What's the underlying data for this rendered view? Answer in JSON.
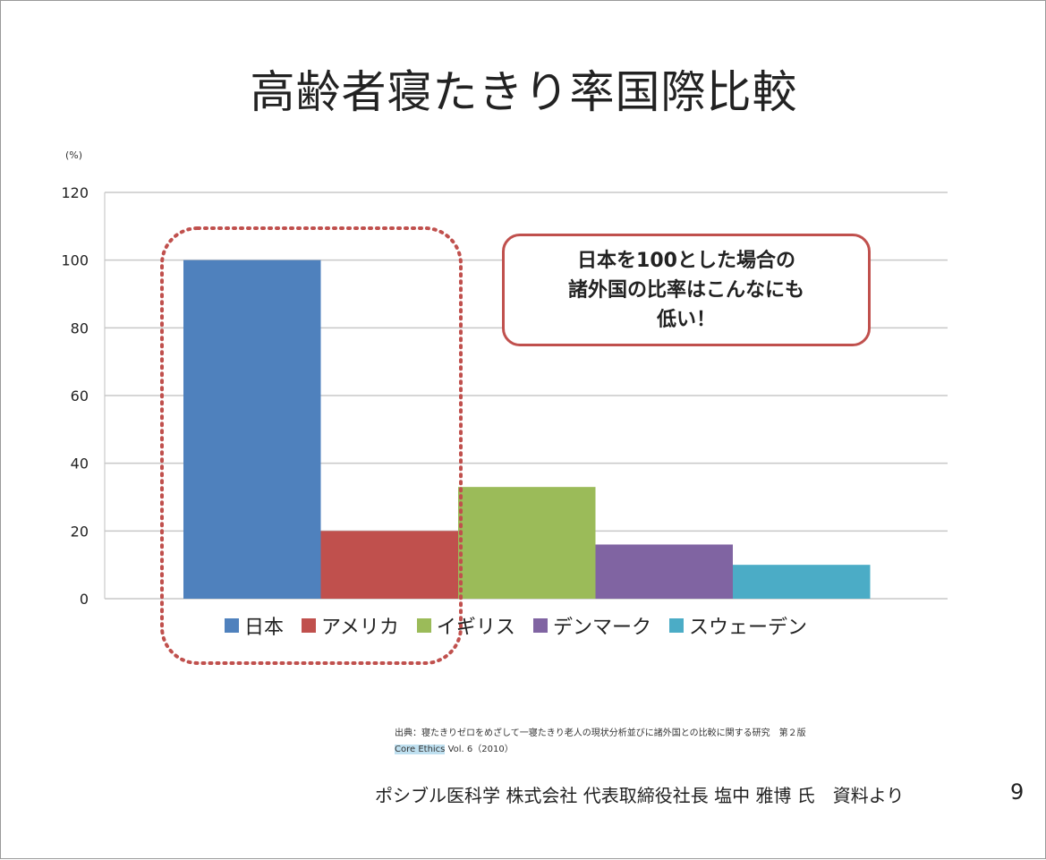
{
  "slide": {
    "title": "高齢者寝たきり率国際比較",
    "callout": {
      "lines": [
        "日本を100とした場合の",
        "諸外国の比率はこんなにも",
        "低い！"
      ],
      "border_color": "#c0504d"
    },
    "source": {
      "line1": "出典：寝たきりゼロをめざして一寝たきり老人の現状分析並びに諸外国との比較に関する研究　第２版",
      "line2_highlight": "Core Ethics",
      "line2_rest": " Vol. 6（2010）"
    },
    "footer": "ポシブル医科学 株式会社 代表取締役社長 塩中 雅博 氏　資料より",
    "page_number": "9",
    "highlight_box_color": "#c0504d"
  },
  "chart_data": {
    "type": "bar",
    "unit_label": "(%)",
    "ylim": [
      0,
      120
    ],
    "yticks": [
      "0",
      "20",
      "40",
      "60",
      "80",
      "100",
      "120"
    ],
    "grid": true,
    "legend_position": "bottom",
    "series": [
      {
        "name": "日本",
        "value": 100,
        "color": "#4f81bd"
      },
      {
        "name": "アメリカ",
        "value": 20,
        "color": "#c0504d"
      },
      {
        "name": "イギリス",
        "value": 33,
        "color": "#9bbb59"
      },
      {
        "name": "デンマーク",
        "value": 16,
        "color": "#8064a2"
      },
      {
        "name": "スウェーデン",
        "value": 10,
        "color": "#4bacc6"
      }
    ]
  }
}
